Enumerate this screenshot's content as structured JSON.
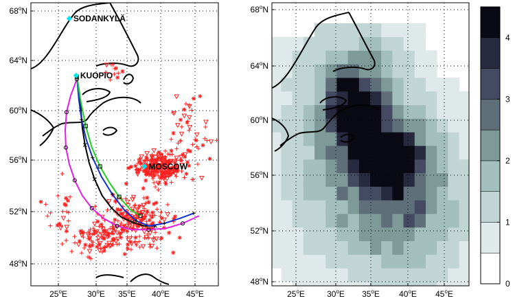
{
  "left_map": {
    "lat_ticks": [
      {
        "value": "48",
        "hemi": "N"
      },
      {
        "value": "52",
        "hemi": "N"
      },
      {
        "value": "56",
        "hemi": "N"
      },
      {
        "value": "60",
        "hemi": "N"
      },
      {
        "value": "64",
        "hemi": "N"
      },
      {
        "value": "68",
        "hemi": "N"
      }
    ],
    "lon_ticks": [
      {
        "value": "25",
        "hemi": "E"
      },
      {
        "value": "30",
        "hemi": "E"
      },
      {
        "value": "35",
        "hemi": "E"
      },
      {
        "value": "40",
        "hemi": "E"
      },
      {
        "value": "45",
        "hemi": "E"
      }
    ],
    "cities": [
      {
        "label": "SODANKYLÄ",
        "lon": 26.6,
        "lat": 67.4
      },
      {
        "label": "KUOPIO",
        "lon": 27.6,
        "lat": 62.9
      },
      {
        "label": "MOSCOW",
        "lon": 37.6,
        "lat": 55.7
      }
    ],
    "city_marker_color": "#00e5ee",
    "observation_marker_color": "#ff2020",
    "trajectory_colors": {
      "blue": "#1030d0",
      "green": "#20d020",
      "magenta": "#e020e0",
      "black": "#000000"
    }
  },
  "right_map": {
    "lat_ticks": [
      {
        "value": "48",
        "hemi": "N"
      },
      {
        "value": "52",
        "hemi": "N"
      },
      {
        "value": "56",
        "hemi": "N"
      },
      {
        "value": "60",
        "hemi": "N"
      },
      {
        "value": "64",
        "hemi": "N"
      },
      {
        "value": "68",
        "hemi": "N"
      }
    ],
    "lon_ticks": [
      {
        "value": "25",
        "hemi": "E"
      },
      {
        "value": "30",
        "hemi": "E"
      },
      {
        "value": "35",
        "hemi": "E"
      },
      {
        "value": "40",
        "hemi": "E"
      },
      {
        "value": "45",
        "hemi": "E"
      }
    ]
  },
  "colorbar": {
    "tick_labels": [
      "0",
      "1",
      "2",
      "3",
      "4"
    ],
    "range": [
      0,
      4.5
    ],
    "levels": 9,
    "colors": [
      "#ffffff",
      "#dfe9e9",
      "#c1d5d4",
      "#a3bfbd",
      "#7d9998",
      "#5f6f7a",
      "#444a62",
      "#282a40",
      "#0a0a14"
    ]
  }
}
